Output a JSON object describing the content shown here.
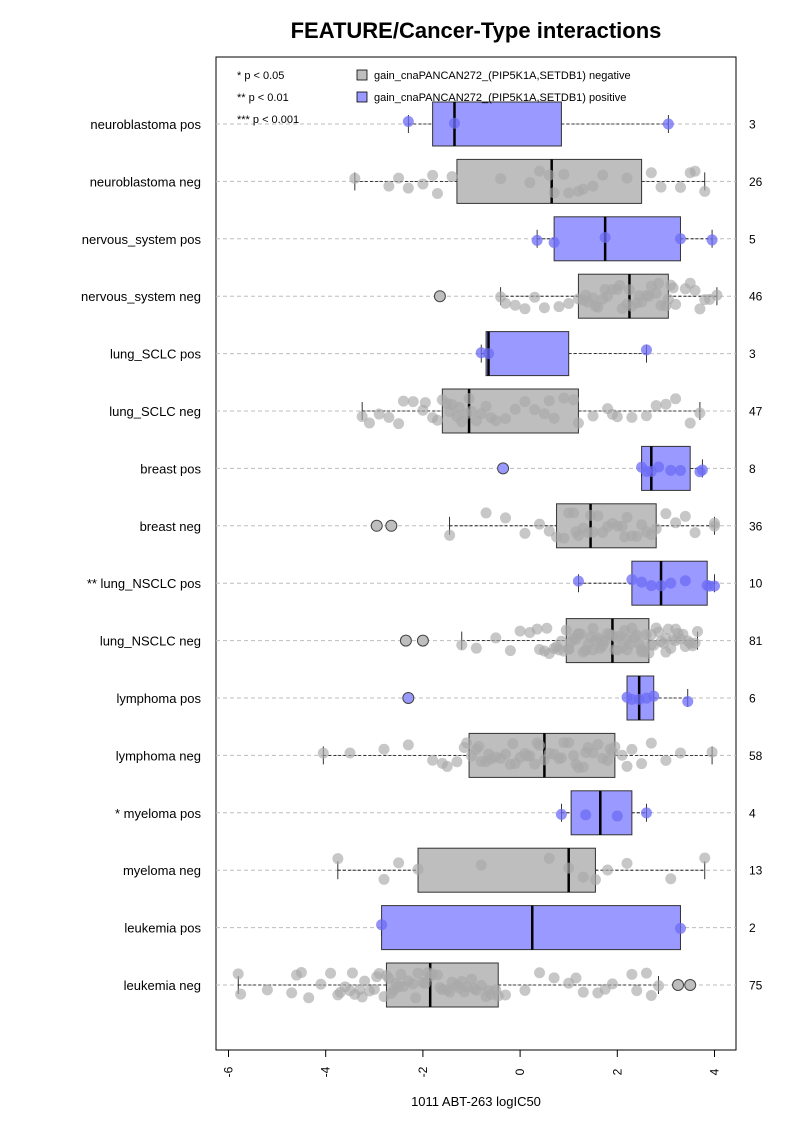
{
  "chart_data": {
    "type": "box",
    "title": "FEATURE/Cancer-Type interactions",
    "xlabel": "1011 ABT-263 logIC50",
    "xlim": [
      -6.3,
      4.5
    ],
    "x_ticks": [
      -6,
      -4,
      -2,
      0,
      2,
      4
    ],
    "x_tick_labels": [
      "-6",
      "-4",
      "-2",
      "0",
      "2",
      "4"
    ],
    "grid": "horizontal dashed",
    "legend": {
      "placement": "top",
      "significance": [
        "* p < 0.05",
        "** p < 0.01",
        "*** p < 0.001"
      ],
      "series": [
        {
          "name": "gain_cnaPANCAN272_(PIP5K1A,SETDB1) negative",
          "color": "#bebebe"
        },
        {
          "name": "gain_cnaPANCAN272_(PIP5K1A,SETDB1) positive",
          "color": "#9999ff"
        }
      ]
    },
    "colors": {
      "negative": "#bebebe",
      "positive": "#9999ff",
      "negative_point": "#a9a9a9",
      "positive_point": "#6c6cf6"
    },
    "groups": [
      {
        "label": "neuroblastoma pos",
        "n": "3",
        "status": "pos",
        "whisker": [
          -2.3,
          3.05
        ],
        "q1": -1.8,
        "median": -1.35,
        "q3": 0.85,
        "points": [
          -2.3,
          -1.35,
          3.05
        ],
        "outliers": []
      },
      {
        "label": "neuroblastoma neg",
        "n": "26",
        "status": "neg",
        "whisker": [
          -3.4,
          3.8
        ],
        "q1": -1.3,
        "median": 0.65,
        "q3": 2.5,
        "points": [
          -3.4,
          -2.7,
          -2.5,
          -2.3,
          -2.0,
          -1.8,
          -1.7,
          -1.4,
          -0.4,
          0.2,
          0.4,
          0.6,
          0.7,
          0.9,
          1.0,
          1.2,
          1.3,
          1.5,
          1.7,
          2.2,
          2.7,
          2.9,
          3.3,
          3.5,
          3.6,
          3.8
        ],
        "outliers": []
      },
      {
        "label": "nervous_system pos",
        "n": "5",
        "status": "pos",
        "whisker": [
          0.35,
          3.95
        ],
        "q1": 0.7,
        "median": 1.75,
        "q3": 3.3,
        "points": [
          0.35,
          0.7,
          1.75,
          3.3,
          3.95
        ],
        "outliers": []
      },
      {
        "label": "nervous_system neg",
        "n": "46",
        "status": "neg",
        "whisker": [
          -0.4,
          4.05
        ],
        "q1": 1.2,
        "median": 2.25,
        "q3": 3.05,
        "points": [
          -0.4,
          -0.3,
          -0.1,
          0.1,
          0.3,
          0.5,
          0.8,
          1.0,
          1.2,
          1.3,
          1.4,
          1.5,
          1.6,
          1.7,
          1.8,
          1.9,
          2.0,
          2.1,
          2.2,
          2.25,
          2.3,
          2.4,
          2.5,
          2.6,
          2.7,
          2.8,
          2.9,
          3.0,
          3.05,
          3.1,
          3.2,
          3.4,
          3.5,
          3.6,
          3.8,
          3.9,
          4.05,
          1.35,
          1.55,
          1.75,
          2.05,
          2.45,
          2.65,
          2.85,
          3.15,
          3.7
        ],
        "outliers": [
          -1.65
        ]
      },
      {
        "label": "lung_SCLC pos",
        "n": "3",
        "status": "pos",
        "whisker": [
          -0.8,
          2.6
        ],
        "q1": -0.7,
        "median": -0.65,
        "q3": 1.0,
        "points": [
          -0.8,
          -0.65,
          2.6
        ],
        "outliers": []
      },
      {
        "label": "lung_SCLC neg",
        "n": "47",
        "status": "neg",
        "whisker": [
          -3.25,
          3.7
        ],
        "q1": -1.6,
        "median": -1.05,
        "q3": 1.2,
        "points": [
          -3.25,
          -3.1,
          -2.9,
          -2.7,
          -2.5,
          -2.2,
          -2.0,
          -1.95,
          -1.8,
          -1.7,
          -1.6,
          -1.5,
          -1.45,
          -1.4,
          -1.3,
          -1.2,
          -1.1,
          -1.05,
          -1.0,
          -0.9,
          -0.8,
          -0.7,
          -0.5,
          -0.3,
          -0.1,
          0.1,
          0.3,
          0.5,
          0.7,
          0.9,
          1.1,
          1.2,
          1.5,
          1.8,
          2.0,
          2.3,
          2.6,
          2.8,
          3.0,
          3.2,
          3.5,
          3.7,
          -2.4,
          -1.25,
          -0.6,
          0.6,
          1.9
        ],
        "outliers": []
      },
      {
        "label": "breast pos",
        "n": "8",
        "status": "pos",
        "whisker": [
          2.5,
          3.75
        ],
        "q1": 2.5,
        "median": 2.7,
        "q3": 3.5,
        "points": [
          2.5,
          2.6,
          2.7,
          2.85,
          3.1,
          3.3,
          3.7,
          3.75
        ],
        "outliers": [
          -0.35
        ]
      },
      {
        "label": "breast neg",
        "n": "36",
        "status": "neg",
        "whisker": [
          -1.45,
          4.0
        ],
        "q1": 0.75,
        "median": 1.45,
        "q3": 2.8,
        "points": [
          -1.45,
          -0.7,
          -0.3,
          0.1,
          0.4,
          0.6,
          0.75,
          0.9,
          1.0,
          1.1,
          1.2,
          1.3,
          1.4,
          1.45,
          1.5,
          1.6,
          1.7,
          1.8,
          1.9,
          2.0,
          2.1,
          2.2,
          2.3,
          2.4,
          2.5,
          2.6,
          2.7,
          2.8,
          3.0,
          3.2,
          3.4,
          3.6,
          4.0,
          4.0,
          1.15,
          2.15
        ],
        "outliers": [
          -2.95,
          -2.65
        ]
      },
      {
        "label": "** lung_NSCLC pos",
        "n": "10",
        "status": "pos",
        "whisker": [
          1.2,
          4.0
        ],
        "q1": 2.3,
        "median": 2.9,
        "q3": 3.85,
        "points": [
          1.2,
          2.3,
          2.5,
          2.7,
          2.9,
          3.1,
          3.4,
          3.85,
          3.9,
          4.0
        ],
        "outliers": []
      },
      {
        "label": "lung_NSCLC neg",
        "n": "81",
        "status": "neg",
        "whisker": [
          -1.2,
          3.65
        ],
        "q1": 0.95,
        "median": 1.9,
        "q3": 2.65,
        "points": [
          -1.2,
          -0.9,
          -0.5,
          -0.2,
          0.0,
          0.2,
          0.35,
          0.5,
          0.6,
          0.7,
          0.8,
          0.9,
          0.95,
          1.0,
          1.1,
          1.2,
          1.3,
          1.4,
          1.5,
          1.6,
          1.7,
          1.8,
          1.85,
          1.9,
          1.95,
          2.0,
          2.1,
          2.2,
          2.3,
          2.4,
          2.5,
          2.6,
          2.65,
          2.7,
          2.8,
          2.9,
          3.0,
          3.1,
          3.2,
          3.3,
          3.4,
          3.5,
          3.6,
          3.65,
          0.4,
          0.55,
          0.75,
          0.85,
          1.05,
          1.15,
          1.25,
          1.35,
          1.45,
          1.55,
          1.65,
          1.75,
          2.05,
          2.15,
          2.25,
          2.35,
          2.45,
          2.55,
          2.75,
          2.85,
          2.95,
          3.05,
          3.15,
          3.25,
          3.35,
          3.45,
          3.55,
          1.0,
          1.5,
          2.0,
          2.5,
          3.0,
          1.2,
          1.7,
          2.2,
          2.7,
          3.2
        ],
        "outliers": [
          -2.35,
          -2.0
        ]
      },
      {
        "label": "lymphoma pos",
        "n": "6",
        "status": "pos",
        "whisker": [
          2.2,
          3.45
        ],
        "q1": 2.2,
        "median": 2.45,
        "q3": 2.75,
        "points": [
          2.2,
          2.3,
          2.45,
          2.6,
          2.75,
          3.45
        ],
        "outliers": [
          -2.3
        ]
      },
      {
        "label": "lymphoma neg",
        "n": "58",
        "status": "neg",
        "whisker": [
          -4.05,
          3.95
        ],
        "q1": -1.05,
        "median": 0.5,
        "q3": 1.95,
        "points": [
          -4.05,
          -3.5,
          -2.8,
          -2.3,
          -1.8,
          -1.6,
          -1.5,
          -1.3,
          -1.1,
          -1.0,
          -0.9,
          -0.8,
          -0.7,
          -0.6,
          -0.5,
          -0.4,
          -0.3,
          -0.2,
          -0.1,
          0.0,
          0.1,
          0.2,
          0.3,
          0.4,
          0.5,
          0.6,
          0.7,
          0.8,
          0.9,
          1.0,
          1.1,
          1.2,
          1.3,
          1.4,
          1.5,
          1.6,
          1.7,
          1.8,
          1.9,
          1.95,
          2.1,
          2.3,
          2.5,
          2.7,
          3.0,
          3.3,
          3.95,
          -1.15,
          -0.65,
          -0.15,
          0.35,
          0.85,
          1.35,
          1.85,
          -0.85,
          0.15,
          1.15,
          2.2
        ],
        "outliers": []
      },
      {
        "label": "* myeloma pos",
        "n": "4",
        "status": "pos",
        "whisker": [
          0.85,
          2.6
        ],
        "q1": 1.05,
        "median": 1.65,
        "q3": 2.3,
        "points": [
          0.85,
          1.35,
          2.0,
          2.6
        ],
        "outliers": []
      },
      {
        "label": "myeloma neg",
        "n": "13",
        "status": "neg",
        "whisker": [
          -3.75,
          3.8
        ],
        "q1": -2.1,
        "median": 1.0,
        "q3": 1.55,
        "points": [
          -3.75,
          -2.8,
          -2.5,
          -2.1,
          -0.8,
          0.6,
          1.0,
          1.3,
          1.55,
          1.8,
          2.2,
          3.1,
          3.8
        ],
        "outliers": []
      },
      {
        "label": "leukemia pos",
        "n": "2",
        "status": "pos",
        "whisker": [
          -2.85,
          3.3
        ],
        "q1": -2.85,
        "median": 0.25,
        "q3": 3.3,
        "points": [
          -2.85,
          3.3
        ],
        "outliers": []
      },
      {
        "label": "leukemia neg",
        "n": "75",
        "status": "neg",
        "whisker": [
          -5.8,
          2.85
        ],
        "q1": -2.75,
        "median": -1.85,
        "q3": -0.45,
        "points": [
          -5.8,
          -5.75,
          -5.2,
          -4.7,
          -4.6,
          -4.5,
          -4.1,
          -3.9,
          -3.7,
          -3.6,
          -3.5,
          -3.4,
          -3.3,
          -3.2,
          -3.1,
          -3.0,
          -2.9,
          -2.8,
          -2.75,
          -2.7,
          -2.6,
          -2.5,
          -2.4,
          -2.3,
          -2.2,
          -2.1,
          -2.0,
          -1.9,
          -1.85,
          -1.8,
          -1.7,
          -1.6,
          -1.5,
          -1.4,
          -1.3,
          -1.2,
          -1.1,
          -1.0,
          -0.9,
          -0.8,
          -0.7,
          -0.6,
          -0.5,
          -0.45,
          -0.3,
          0.1,
          0.4,
          0.7,
          1.0,
          1.3,
          1.6,
          1.9,
          2.3,
          2.4,
          2.6,
          2.7,
          2.85,
          -3.45,
          -3.25,
          -2.95,
          -2.65,
          -2.45,
          -2.15,
          -1.95,
          -1.65,
          -1.45,
          -1.15,
          -0.95,
          -0.65,
          -3.75,
          -4.35,
          1.15,
          1.75,
          -2.55,
          -1.25
        ],
        "outliers": [
          3.25,
          3.5
        ]
      }
    ]
  }
}
